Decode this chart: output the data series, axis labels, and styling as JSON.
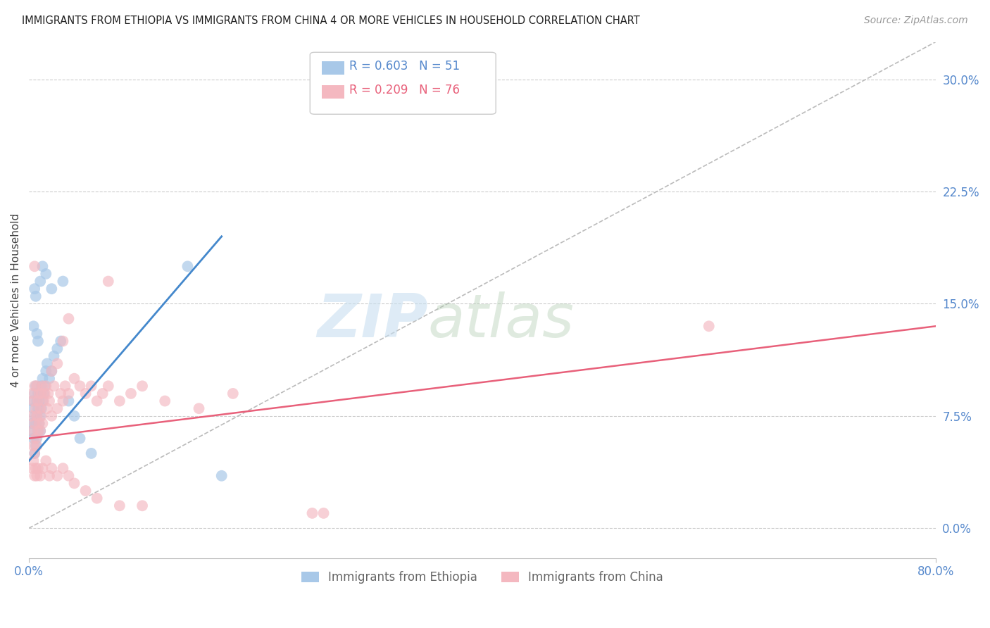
{
  "title": "IMMIGRANTS FROM ETHIOPIA VS IMMIGRANTS FROM CHINA 4 OR MORE VEHICLES IN HOUSEHOLD CORRELATION CHART",
  "source": "Source: ZipAtlas.com",
  "ylabel": "4 or more Vehicles in Household",
  "ytick_values": [
    0.0,
    7.5,
    15.0,
    22.5,
    30.0
  ],
  "xlim": [
    0.0,
    80.0
  ],
  "ylim": [
    -2.0,
    32.5
  ],
  "color_ethiopia": "#a8c8e8",
  "color_china": "#f4b8c0",
  "color_ethiopia_line": "#4488cc",
  "color_china_line": "#e8607a",
  "color_diagonal": "#bbbbbb",
  "watermark_zip": "ZIP",
  "watermark_atlas": "atlas",
  "ethiopia_x": [
    0.2,
    0.3,
    0.3,
    0.4,
    0.4,
    0.5,
    0.5,
    0.5,
    0.6,
    0.6,
    0.6,
    0.7,
    0.7,
    0.7,
    0.8,
    0.8,
    0.8,
    0.9,
    0.9,
    1.0,
    1.0,
    1.0,
    1.1,
    1.1,
    1.2,
    1.2,
    1.3,
    1.4,
    1.5,
    1.6,
    1.8,
    2.0,
    2.2,
    2.5,
    2.8,
    3.0,
    3.5,
    4.0,
    4.5,
    5.5,
    0.4,
    0.5,
    0.6,
    0.7,
    0.8,
    1.0,
    1.2,
    1.5,
    2.0,
    14.0,
    17.0
  ],
  "ethiopia_y": [
    6.5,
    7.0,
    8.5,
    6.0,
    8.0,
    5.0,
    7.5,
    9.0,
    5.5,
    7.0,
    9.5,
    6.0,
    7.5,
    8.5,
    6.5,
    8.0,
    9.0,
    7.0,
    8.5,
    6.5,
    7.5,
    9.0,
    8.0,
    9.5,
    8.5,
    10.0,
    9.0,
    9.5,
    10.5,
    11.0,
    10.0,
    10.5,
    11.5,
    12.0,
    12.5,
    16.5,
    8.5,
    7.5,
    6.0,
    5.0,
    13.5,
    16.0,
    15.5,
    13.0,
    12.5,
    16.5,
    17.5,
    17.0,
    16.0,
    17.5,
    3.5
  ],
  "china_x": [
    0.2,
    0.3,
    0.3,
    0.4,
    0.4,
    0.5,
    0.5,
    0.5,
    0.6,
    0.6,
    0.7,
    0.7,
    0.7,
    0.8,
    0.8,
    0.9,
    0.9,
    1.0,
    1.0,
    1.1,
    1.1,
    1.2,
    1.2,
    1.3,
    1.4,
    1.5,
    1.6,
    1.7,
    1.8,
    2.0,
    2.0,
    2.2,
    2.5,
    2.5,
    2.8,
    3.0,
    3.0,
    3.2,
    3.5,
    4.0,
    4.5,
    5.0,
    5.5,
    6.0,
    6.5,
    7.0,
    8.0,
    9.0,
    10.0,
    12.0,
    15.0,
    18.0,
    0.3,
    0.4,
    0.5,
    0.6,
    0.7,
    0.8,
    1.0,
    1.2,
    1.5,
    1.8,
    2.0,
    2.5,
    3.0,
    3.5,
    4.0,
    5.0,
    6.0,
    8.0,
    10.0,
    25.0,
    26.0,
    60.0,
    0.5,
    3.5,
    7.0
  ],
  "china_y": [
    7.5,
    6.5,
    9.0,
    5.5,
    8.5,
    5.0,
    7.0,
    9.5,
    6.0,
    8.0,
    5.5,
    7.5,
    9.5,
    6.5,
    8.5,
    7.0,
    9.0,
    6.5,
    8.0,
    7.5,
    9.0,
    7.0,
    9.5,
    8.5,
    9.0,
    9.5,
    8.0,
    9.0,
    8.5,
    7.5,
    10.5,
    9.5,
    8.0,
    11.0,
    9.0,
    8.5,
    12.5,
    9.5,
    9.0,
    10.0,
    9.5,
    9.0,
    9.5,
    8.5,
    9.0,
    9.5,
    8.5,
    9.0,
    9.5,
    8.5,
    8.0,
    9.0,
    4.0,
    4.5,
    3.5,
    4.0,
    3.5,
    4.0,
    3.5,
    4.0,
    4.5,
    3.5,
    4.0,
    3.5,
    4.0,
    3.5,
    3.0,
    2.5,
    2.0,
    1.5,
    1.5,
    1.0,
    1.0,
    13.5,
    17.5,
    14.0,
    16.5
  ],
  "eth_line_x": [
    0.0,
    17.0
  ],
  "eth_line_y": [
    4.5,
    19.5
  ],
  "chn_line_x": [
    0.0,
    80.0
  ],
  "chn_line_y": [
    6.0,
    13.5
  ]
}
